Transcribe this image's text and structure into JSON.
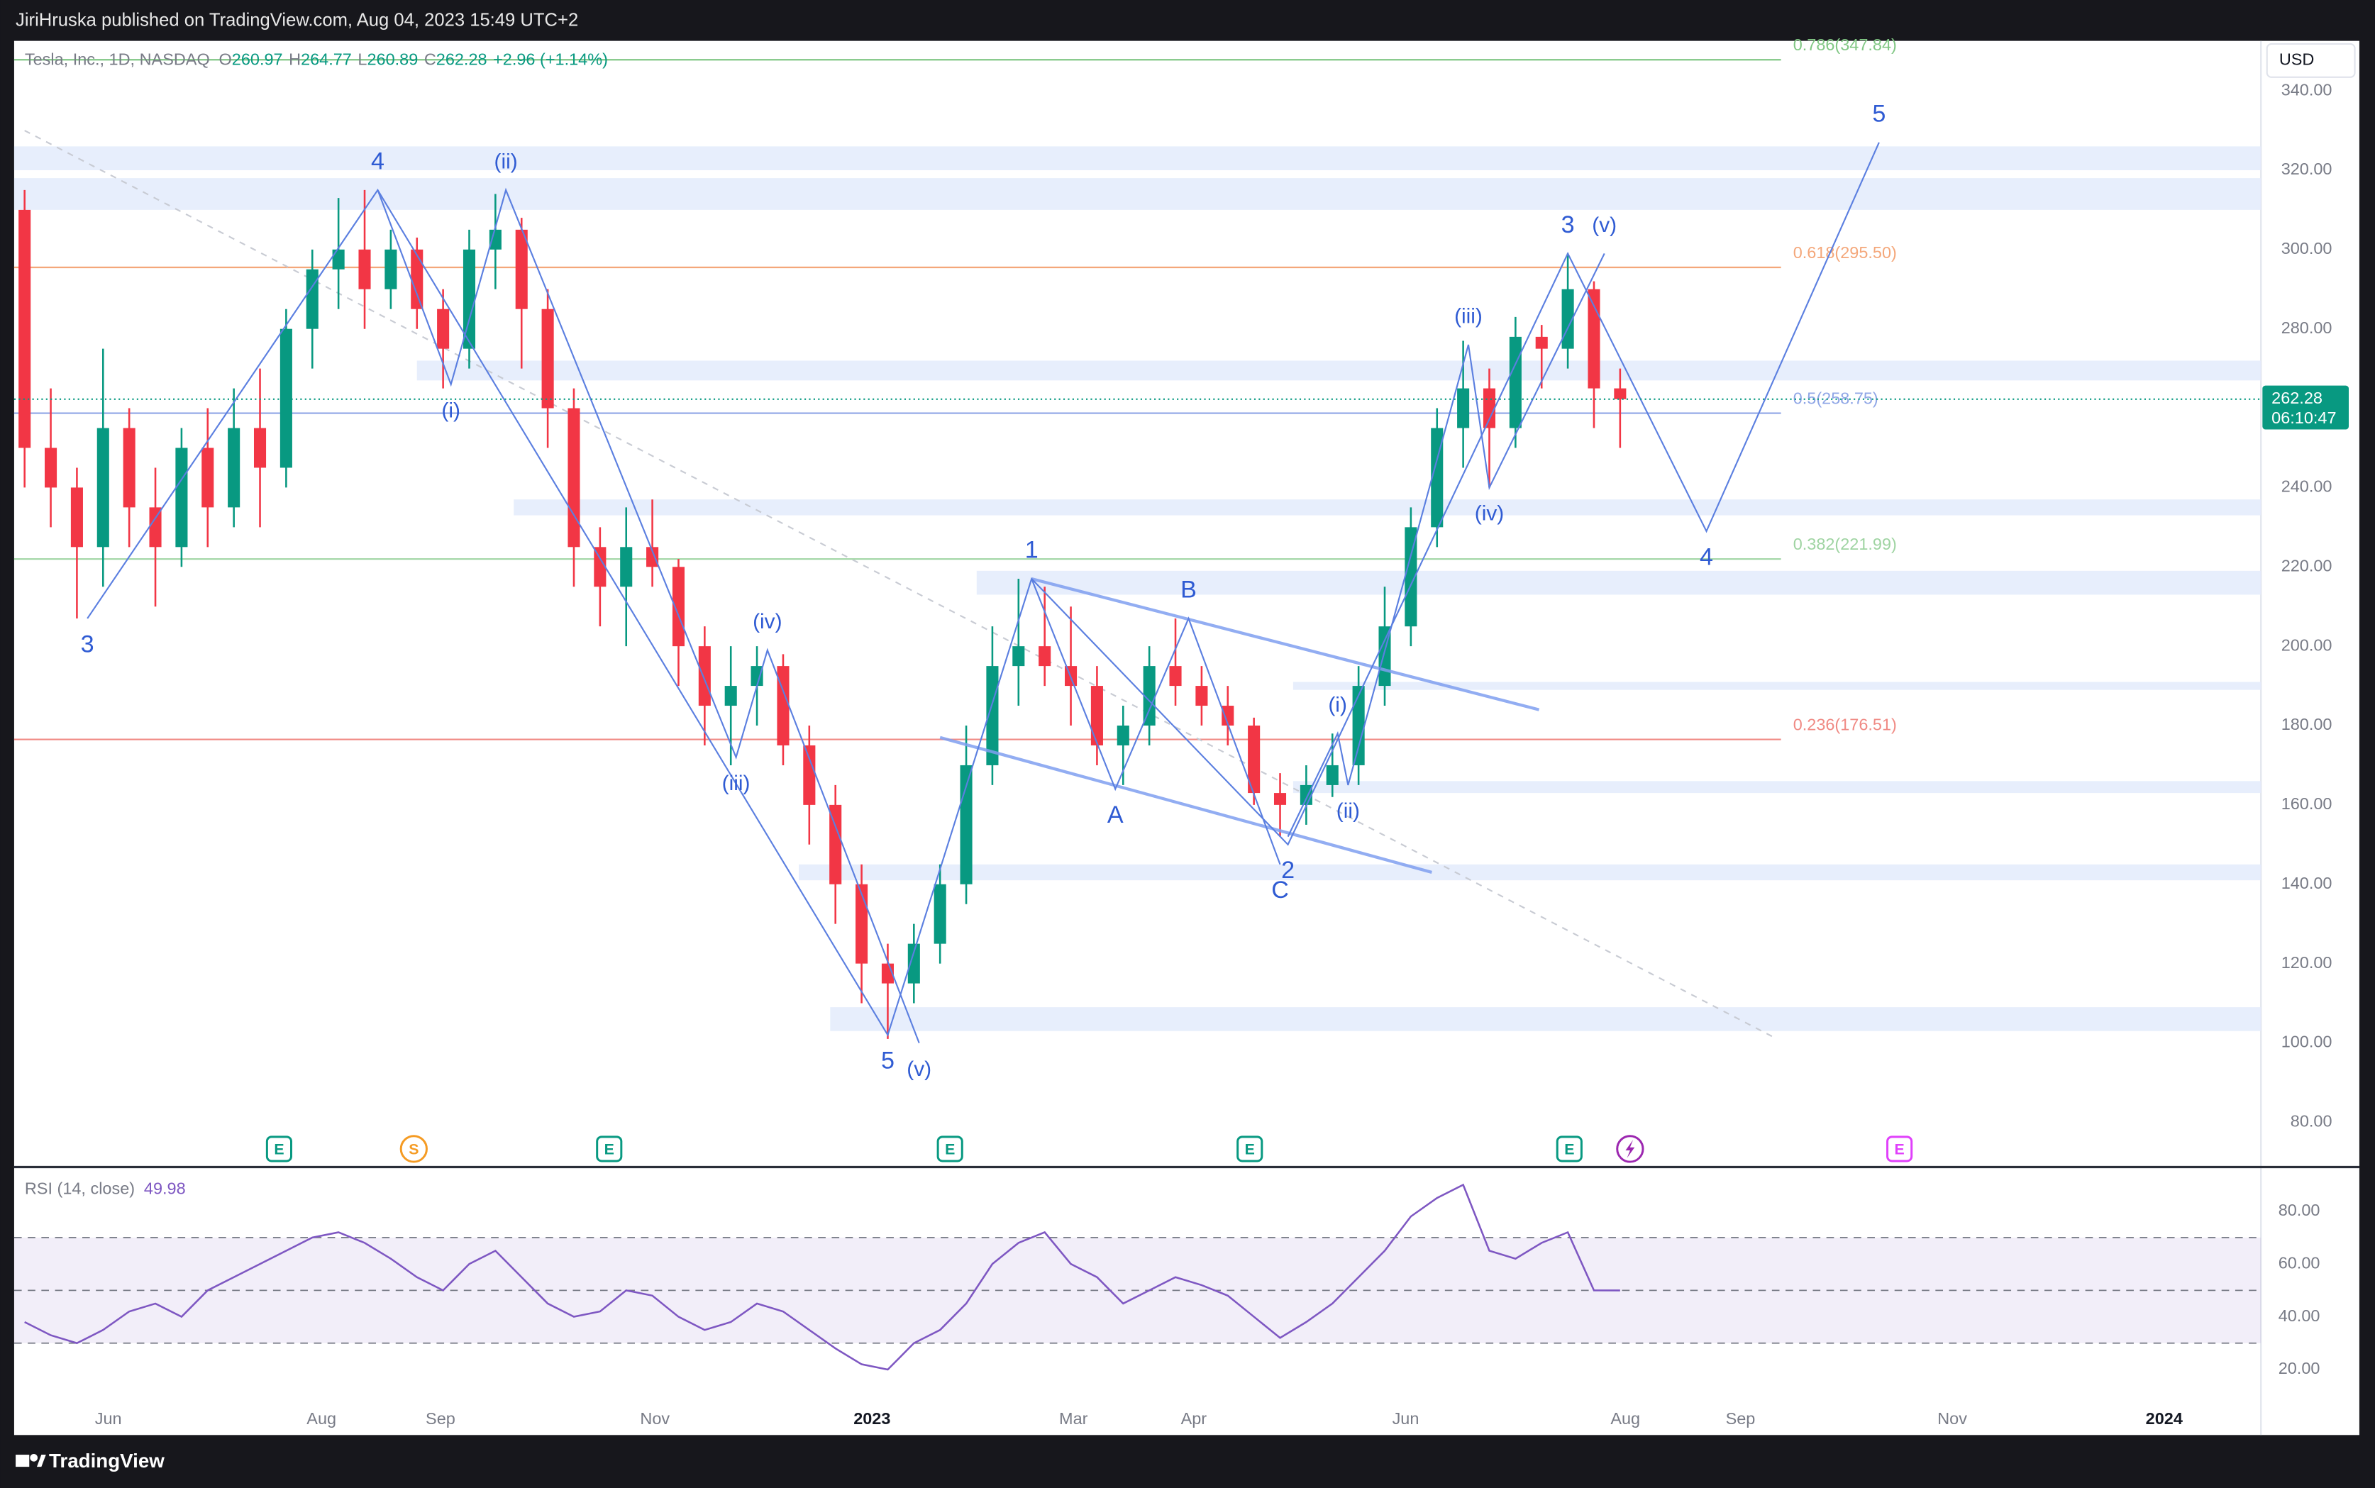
{
  "header": {
    "publisher": "JiriHruska published on TradingView.com, Aug 04, 2023 15:49 UTC+2",
    "brand": "TradingView",
    "currency": "USD",
    "countdown": "06:10:47"
  },
  "chart_data": [
    {
      "type": "candlestick",
      "symbol": "Tesla, Inc., 1D, NASDAQ",
      "ohlc": [
        {
          "key": "O",
          "value": 260.97
        },
        {
          "key": "H",
          "value": 264.77
        },
        {
          "key": "L",
          "value": 260.89
        },
        {
          "key": "C",
          "value": 262.28
        }
      ],
      "change": "+2.96 (+1.14%)",
      "up_color": "#089981",
      "down_color": "#f23645",
      "candles": {
        "open": [
          310,
          250,
          240,
          225,
          255,
          235,
          225,
          250,
          235,
          255,
          245,
          280,
          295,
          300,
          290,
          300,
          285,
          275,
          300,
          305,
          285,
          260,
          225,
          215,
          225,
          220,
          200,
          185,
          190,
          195,
          175,
          160,
          140,
          120,
          115,
          125,
          140,
          170,
          195,
          200,
          195,
          190,
          175,
          180,
          195,
          190,
          185,
          180,
          163,
          160,
          165,
          170,
          190,
          205,
          230,
          255,
          265,
          255,
          278,
          275,
          290,
          265
        ],
        "high": [
          315,
          265,
          245,
          275,
          260,
          245,
          255,
          260,
          265,
          270,
          285,
          300,
          313,
          315,
          305,
          303,
          290,
          305,
          314,
          308,
          290,
          265,
          230,
          235,
          237,
          222,
          205,
          200,
          200,
          198,
          180,
          165,
          145,
          125,
          130,
          145,
          180,
          205,
          217,
          215,
          210,
          195,
          185,
          200,
          207,
          195,
          190,
          182,
          168,
          170,
          178,
          195,
          215,
          235,
          260,
          277,
          270,
          283,
          281,
          299,
          292,
          270
        ],
        "low": [
          240,
          230,
          207,
          215,
          225,
          210,
          220,
          225,
          230,
          230,
          240,
          270,
          285,
          280,
          285,
          280,
          265,
          270,
          290,
          270,
          250,
          215,
          205,
          200,
          215,
          190,
          175,
          170,
          180,
          170,
          150,
          130,
          110,
          101,
          110,
          120,
          135,
          165,
          185,
          190,
          180,
          170,
          165,
          175,
          185,
          180,
          175,
          160,
          152,
          155,
          162,
          165,
          185,
          200,
          225,
          245,
          240,
          250,
          265,
          270,
          255,
          250
        ],
        "close": [
          250,
          240,
          225,
          255,
          235,
          225,
          250,
          235,
          255,
          245,
          280,
          295,
          300,
          290,
          300,
          285,
          275,
          300,
          305,
          285,
          260,
          225,
          215,
          225,
          220,
          200,
          185,
          190,
          195,
          175,
          160,
          140,
          120,
          115,
          125,
          140,
          170,
          195,
          200,
          195,
          190,
          175,
          180,
          195,
          190,
          185,
          180,
          163,
          160,
          165,
          170,
          190,
          205,
          230,
          255,
          265,
          255,
          278,
          275,
          290,
          265,
          262.28
        ]
      },
      "xlim": [
        -0.4,
        85.5
      ],
      "xticks": [
        {
          "value": 3.2,
          "label": "Jun"
        },
        {
          "value": 11.35,
          "label": "Aug"
        },
        {
          "value": 15.9,
          "label": "Sep"
        },
        {
          "value": 24.1,
          "label": "Nov"
        },
        {
          "value": 32.4,
          "label": "2023"
        },
        {
          "value": 40.1,
          "label": "Mar"
        },
        {
          "value": 44.7,
          "label": "Apr"
        },
        {
          "value": 52.8,
          "label": "Jun"
        },
        {
          "value": 61.2,
          "label": "Aug"
        },
        {
          "value": 65.6,
          "label": "Sep"
        },
        {
          "value": 73.7,
          "label": "Nov"
        },
        {
          "value": 81.8,
          "label": "2024"
        }
      ],
      "ylim": [
        68.7,
        352.6
      ],
      "yticks": [
        {
          "value": 80,
          "label": "80.00"
        },
        {
          "value": 100,
          "label": "100.00"
        },
        {
          "value": 120,
          "label": "120.00"
        },
        {
          "value": 140,
          "label": "140.00"
        },
        {
          "value": 160,
          "label": "160.00"
        },
        {
          "value": 180,
          "label": "180.00"
        },
        {
          "value": 200,
          "label": "200.00"
        },
        {
          "value": 220,
          "label": "220.00"
        },
        {
          "value": 240,
          "label": "240.00"
        },
        {
          "value": 260,
          "label": "260.00"
        },
        {
          "value": 280,
          "label": "280.00"
        },
        {
          "value": 300,
          "label": "300.00"
        },
        {
          "value": 320,
          "label": "320.00"
        },
        {
          "value": 340,
          "label": "340.00"
        }
      ],
      "fib_levels": [
        {
          "label": "0.786(347.84)",
          "value": 347.84,
          "color": "#81c784"
        },
        {
          "label": "0.618(295.50)",
          "value": 295.5,
          "color": "#f4a77a"
        },
        {
          "label": "0.5(258.75)",
          "value": 258.75,
          "color": "#8fa6e6"
        },
        {
          "label": "0.382(221.99)",
          "value": 221.99,
          "color": "#9fd4a2"
        },
        {
          "label": "0.236(176.51)",
          "value": 176.51,
          "color": "#f08a84"
        }
      ],
      "zones": [
        {
          "low": 320,
          "high": 326,
          "start": -0.4
        },
        {
          "low": 310,
          "high": 318,
          "start": -0.4
        },
        {
          "low": 267,
          "high": 272,
          "start": 15.0
        },
        {
          "low": 233,
          "high": 237,
          "start": 18.7
        },
        {
          "low": 213,
          "high": 219,
          "start": 36.4
        },
        {
          "low": 189,
          "high": 191,
          "start": 48.5
        },
        {
          "low": 163,
          "high": 166,
          "start": 48.5
        },
        {
          "low": 141,
          "high": 145,
          "start": 29.6
        },
        {
          "low": 103,
          "high": 109,
          "start": 30.8
        }
      ],
      "wave_color": "#5b7fe0",
      "waves": [
        {
          "points": [
            {
              "x": 2.4,
              "y": 207,
              "label": "3"
            },
            {
              "x": 13.5,
              "y": 315,
              "label": "4"
            },
            {
              "x": 33.0,
              "y": 102,
              "label": "5"
            },
            {
              "x": 38.5,
              "y": 217,
              "label": "1"
            },
            {
              "x": 48.3,
              "y": 150,
              "label": "2"
            },
            {
              "x": 59.0,
              "y": 299,
              "label": "3"
            },
            {
              "x": 64.3,
              "y": 229,
              "label": "4"
            },
            {
              "x": 70.9,
              "y": 327,
              "label": "5"
            }
          ]
        },
        {
          "points": [
            {
              "x": 13.5,
              "y": 315
            },
            {
              "x": 16.3,
              "y": 266,
              "label": "(i)"
            },
            {
              "x": 18.4,
              "y": 315,
              "label": "(ii)"
            },
            {
              "x": 27.2,
              "y": 172,
              "label": "(iii)"
            },
            {
              "x": 28.4,
              "y": 199,
              "label": "(iv)"
            },
            {
              "x": 34.2,
              "y": 100,
              "label": "(v)"
            }
          ]
        },
        {
          "points": [
            {
              "x": 38.5,
              "y": 217
            },
            {
              "x": 41.7,
              "y": 164,
              "label": "A"
            },
            {
              "x": 44.5,
              "y": 207,
              "label": "B"
            },
            {
              "x": 48.0,
              "y": 145,
              "label": "C"
            }
          ]
        },
        {
          "points": [
            {
              "x": 48.3,
              "y": 152
            },
            {
              "x": 50.2,
              "y": 178,
              "label": "(i)"
            },
            {
              "x": 50.6,
              "y": 165,
              "label": "(ii)"
            },
            {
              "x": 55.2,
              "y": 276,
              "label": "(iii)"
            },
            {
              "x": 56.0,
              "y": 240,
              "label": "(iv)"
            },
            {
              "x": 60.4,
              "y": 299,
              "label": "(v)"
            }
          ]
        }
      ],
      "channels": [
        {
          "x1": 38.5,
          "y1": 217,
          "x2": 57.9,
          "y2": 184
        },
        {
          "x1": 35.0,
          "y1": 177,
          "x2": 53.8,
          "y2": 143
        }
      ],
      "trend_line": {
        "x1": 0.0,
        "y1": 330,
        "x2": 67.0,
        "y2": 101
      },
      "events": [
        {
          "x": 9.73,
          "label": "E",
          "color": "#089981"
        },
        {
          "x": 14.88,
          "label": "S",
          "color": "#f59b23"
        },
        {
          "x": 22.35,
          "label": "E",
          "color": "#089981"
        },
        {
          "x": 35.38,
          "label": "E",
          "color": "#089981"
        },
        {
          "x": 46.84,
          "label": "E",
          "color": "#089981"
        },
        {
          "x": 59.06,
          "label": "E",
          "color": "#089981"
        },
        {
          "x": 61.38,
          "color": "#9c27b0"
        },
        {
          "x": 71.68,
          "label": "E",
          "color": "#e040fb"
        }
      ]
    },
    {
      "type": "line",
      "name": "RSI (14, close)",
      "color": "#7e57c2",
      "values": [
        38,
        33,
        30,
        35,
        42,
        45,
        40,
        50,
        55,
        60,
        65,
        70,
        72,
        68,
        62,
        55,
        50,
        60,
        65,
        55,
        45,
        40,
        42,
        50,
        48,
        40,
        35,
        38,
        45,
        42,
        35,
        28,
        22,
        20,
        30,
        35,
        45,
        60,
        68,
        72,
        60,
        55,
        45,
        50,
        55,
        52,
        48,
        40,
        32,
        38,
        45,
        55,
        65,
        78,
        85,
        90,
        65,
        62,
        68,
        72,
        50,
        49.98
      ],
      "ylim": [
        -4.8,
        96.7
      ],
      "yticks": [
        {
          "value": 20,
          "label": "20.00"
        },
        {
          "value": 40,
          "label": "40.00"
        },
        {
          "value": 60,
          "label": "60.00"
        },
        {
          "value": 80,
          "label": "80.00"
        }
      ],
      "upper_band": 70,
      "middle_band": 50,
      "lower_band": 30
    }
  ]
}
